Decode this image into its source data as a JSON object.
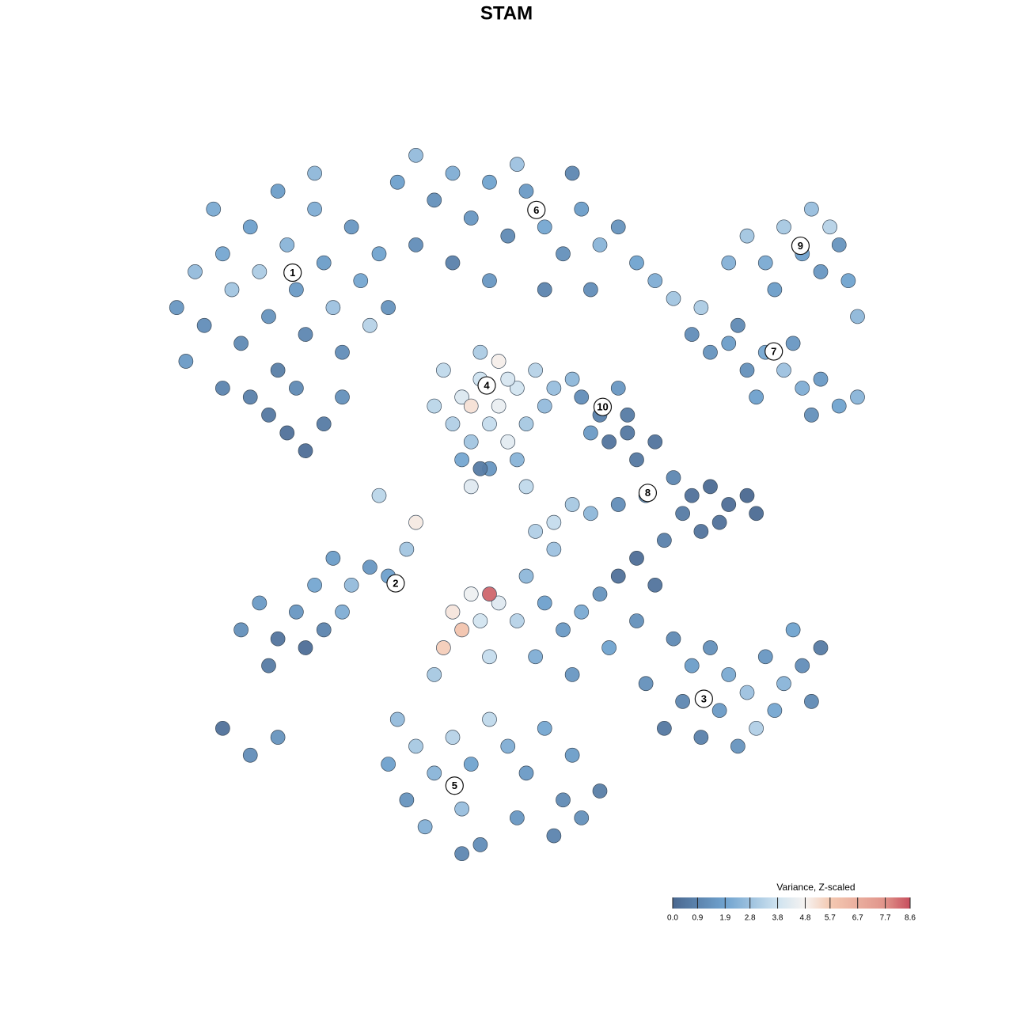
{
  "chart_data": {
    "type": "scatter",
    "title": "STAM",
    "xlim": [
      -40,
      40
    ],
    "ylim": [
      -40,
      40
    ],
    "x": [
      -38,
      -36,
      -35,
      -33,
      -32,
      -31,
      -30,
      -29,
      -28,
      -27,
      -26,
      -25,
      -24,
      -23,
      -22,
      -21,
      -20,
      -19,
      -18,
      -17,
      -28,
      -26,
      -24,
      -22,
      -30,
      -25,
      -20,
      -33,
      -37,
      -34,
      -16,
      -15,
      -27,
      -23,
      -14,
      -12,
      -10,
      -8,
      -6,
      -4,
      -2,
      0,
      2,
      4,
      6,
      8,
      10,
      12,
      14,
      -12,
      -8,
      -4,
      2,
      7,
      -1,
      5,
      16,
      19,
      22,
      24,
      26,
      28,
      30,
      32,
      34,
      35,
      31,
      27,
      36,
      33,
      18,
      20,
      22,
      24,
      26,
      28,
      30,
      32,
      34,
      36,
      23,
      29,
      31,
      25,
      -9,
      -7,
      -5,
      -3,
      -1,
      1,
      -8,
      -6,
      -4,
      -2,
      0,
      -5,
      -3,
      -7,
      -4,
      -1,
      2,
      -10,
      -6,
      -2,
      3,
      -5,
      6,
      8,
      10,
      7,
      9,
      5,
      11,
      12,
      14,
      16,
      18,
      20,
      22,
      24,
      25,
      21,
      17,
      13,
      10,
      7,
      5,
      3,
      1,
      15,
      19,
      11,
      -31,
      -29,
      -27,
      -25,
      -23,
      -21,
      -19,
      -17,
      -24,
      -22,
      -28,
      -33,
      -30,
      -27,
      -20,
      -13,
      -15,
      -8,
      -6,
      -7,
      -5,
      -3,
      -1,
      -4,
      -9,
      0,
      2,
      4,
      6,
      8,
      10,
      12,
      14,
      -4,
      -10,
      1,
      5,
      9,
      12,
      -6,
      -12,
      -16,
      0,
      3,
      16,
      18,
      20,
      22,
      24,
      26,
      28,
      30,
      32,
      21,
      19,
      17,
      25,
      27,
      23,
      15,
      29,
      31,
      13,
      -14,
      -12,
      -10,
      -8,
      -6,
      -4,
      -2,
      0,
      2,
      4,
      -13,
      -11,
      -7,
      -5,
      -1,
      3,
      6,
      8,
      -7,
      -15,
      5
    ],
    "y": [
      22,
      26,
      20,
      28,
      24,
      18,
      31,
      26,
      21,
      15,
      29,
      24,
      19,
      33,
      27,
      22,
      17,
      31,
      25,
      20,
      10,
      8,
      6,
      9,
      12,
      13,
      12,
      13,
      16,
      33,
      28,
      22,
      35,
      37,
      36,
      39,
      34,
      37,
      32,
      36,
      30,
      35,
      31,
      28,
      33,
      29,
      31,
      27,
      25,
      29,
      27,
      25,
      24,
      24,
      38,
      37,
      23,
      22,
      27,
      30,
      27,
      31,
      28,
      26,
      29,
      25,
      33,
      24,
      21,
      31,
      19,
      17,
      18,
      15,
      17,
      15,
      13,
      14,
      11,
      12,
      20,
      18,
      10,
      12,
      15,
      12,
      14,
      11,
      13,
      15,
      9,
      7,
      9,
      7,
      9,
      17,
      16,
      5,
      4,
      5,
      11,
      11,
      11,
      14,
      13,
      4,
      12,
      10,
      13,
      8,
      7,
      14,
      10,
      5,
      7,
      3,
      1,
      2,
      0,
      1,
      -1,
      -2,
      -1,
      1,
      0,
      -1,
      0,
      -2,
      -3,
      -4,
      -3,
      8,
      -14,
      -11,
      -15,
      -12,
      -9,
      -6,
      -9,
      -7,
      -16,
      -14,
      -18,
      -25,
      -28,
      -26,
      -12,
      -5,
      -8,
      -12,
      -10,
      -14,
      -13,
      -11,
      -13,
      -10,
      -16,
      -8,
      -11,
      -14,
      -12,
      -10,
      -8,
      -6,
      -9,
      -17,
      -19,
      -17,
      -19,
      -16,
      -13,
      2,
      -2,
      1,
      2,
      -5,
      -15,
      -18,
      -16,
      -19,
      -21,
      -17,
      -20,
      -18,
      -16,
      -23,
      -26,
      -22,
      -25,
      -23,
      -27,
      -25,
      -14,
      -22,
      -20,
      -24,
      -27,
      -30,
      -26,
      -29,
      -24,
      -27,
      -30,
      -25,
      -33,
      -33,
      -36,
      -34,
      -38,
      -35,
      -37,
      -35,
      -32,
      -39,
      -29,
      -28
    ],
    "values": [
      1.5,
      2.6,
      1.2,
      2.0,
      2.9,
      1.1,
      1.8,
      3.1,
      1.4,
      0.7,
      2.4,
      1.6,
      1.0,
      2.2,
      1.7,
      2.8,
      1.2,
      1.5,
      2.0,
      3.3,
      0.5,
      0.3,
      0.2,
      0.6,
      0.8,
      1.1,
      1.3,
      0.9,
      1.6,
      2.1,
      1.9,
      1.4,
      1.7,
      2.5,
      1.8,
      2.6,
      1.3,
      2.2,
      1.5,
      1.9,
      1.1,
      1.6,
      2.0,
      1.3,
      1.7,
      2.4,
      1.4,
      1.9,
      2.2,
      1.2,
      0.8,
      1.5,
      0.9,
      1.2,
      2.8,
      1.0,
      2.9,
      3.1,
      2.3,
      2.9,
      2.1,
      3.0,
      1.8,
      1.5,
      1.4,
      1.9,
      2.7,
      1.7,
      2.5,
      3.3,
      1.2,
      1.4,
      1.7,
      1.3,
      2.0,
      2.8,
      2.2,
      1.6,
      1.9,
      2.4,
      1.1,
      1.5,
      1.3,
      1.8,
      3.5,
      4.1,
      3.8,
      4.5,
      3.9,
      3.3,
      3.2,
      2.9,
      3.6,
      4.3,
      3.0,
      3.1,
      4.9,
      2.0,
      1.5,
      2.4,
      2.6,
      3.4,
      5.2,
      4.0,
      2.7,
      0.6,
      1.2,
      0.8,
      1.5,
      1.6,
      0.4,
      2.5,
      0.6,
      0.5,
      0.4,
      1.0,
      0.3,
      0.1,
      0.2,
      0.0,
      0.1,
      0.3,
      0.6,
      1.5,
      1.2,
      2.5,
      3.0,
      3.6,
      3.2,
      0.8,
      0.4,
      0.5,
      1.3,
      1.6,
      0.4,
      1.5,
      2.0,
      1.7,
      2.6,
      1.5,
      0.2,
      0.9,
      0.6,
      0.3,
      1.2,
      1.4,
      2.2,
      2.9,
      1.8,
      5.1,
      4.6,
      5.9,
      3.9,
      4.2,
      3.3,
      8.3,
      5.6,
      2.5,
      1.8,
      1.6,
      2.1,
      1.4,
      0.3,
      0.2,
      0.4,
      3.6,
      3.0,
      2.2,
      1.5,
      1.9,
      1.3,
      4.2,
      5.0,
      3.4,
      3.5,
      2.8,
      1.1,
      1.7,
      1.3,
      2.1,
      2.8,
      1.5,
      2.4,
      1.2,
      0.6,
      1.6,
      0.8,
      1.0,
      3.2,
      2.0,
      1.4,
      0.5,
      1.9,
      1.1,
      1.3,
      2.6,
      3.0,
      2.4,
      3.3,
      1.9,
      3.5,
      2.2,
      1.6,
      2.0,
      1.1,
      1.4,
      2.3,
      2.7,
      1.2,
      1.5,
      0.9,
      1.3,
      0.7,
      1.0,
      1.8,
      1.7
    ],
    "cluster_labels": [
      {
        "label": "1",
        "x": -25.4,
        "y": 25.9
      },
      {
        "label": "6",
        "x": 1.1,
        "y": 32.9
      },
      {
        "label": "9",
        "x": 29.8,
        "y": 28.9
      },
      {
        "label": "7",
        "x": 26.9,
        "y": 17.1
      },
      {
        "label": "4",
        "x": -4.3,
        "y": 13.3
      },
      {
        "label": "10",
        "x": 8.3,
        "y": 10.9
      },
      {
        "label": "8",
        "x": 13.2,
        "y": 1.3
      },
      {
        "label": "2",
        "x": -14.2,
        "y": -8.8
      },
      {
        "label": "3",
        "x": 19.3,
        "y": -21.7
      },
      {
        "label": "5",
        "x": -7.8,
        "y": -31.4
      }
    ],
    "colorbar": {
      "title": "Variance, Z-scaled",
      "lim": [
        0,
        8.6
      ],
      "ticks": [
        {
          "value": 0,
          "label": "0.0"
        },
        0.9,
        1.9,
        2.8,
        3.8,
        4.8,
        5.7,
        6.7,
        7.7,
        8.6
      ],
      "stops": [
        0,
        1.9,
        3.8,
        4.8,
        5.7,
        7.7,
        8.6
      ],
      "colors": [
        "#4a6890",
        "#70a3cf",
        "#cfe3f0",
        "#f6f3f1",
        "#f4c9b2",
        "#e0938a",
        "#c74f5e"
      ]
    }
  }
}
